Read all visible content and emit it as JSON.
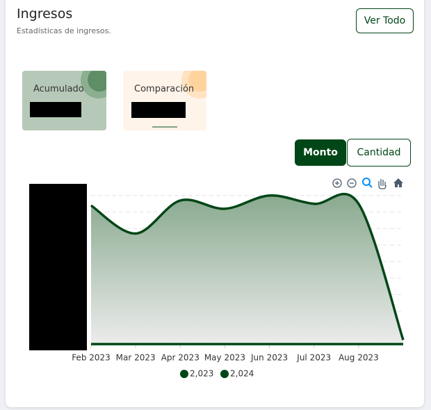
{
  "header": {
    "title": "Ingresos",
    "subtitle": "Estadísticas de ingresos.",
    "button": "Ver Todo"
  },
  "cards": [
    {
      "label": "Acumulado"
    },
    {
      "label": "Comparación"
    }
  ],
  "toggle": [
    "Monto",
    "Cantidad"
  ],
  "chart_data": {
    "type": "area",
    "categories": [
      "Feb 2023",
      "Mar 2023",
      "Apr 2023",
      "May 2023",
      "Jun 2023",
      "Jul 2023",
      "Aug 2023",
      null
    ],
    "series": [
      {
        "name": "2,023",
        "color": "#004616",
        "values": [
          8.4,
          6.7,
          8.7,
          8.2,
          9.0,
          8.5,
          8.5,
          0.25
        ]
      },
      {
        "name": "2,024",
        "color": "#004616",
        "values": [
          0,
          0,
          0,
          0,
          0,
          0,
          0,
          0
        ]
      }
    ],
    "ylim": [
      0,
      9.5
    ],
    "yticks": [
      0,
      1,
      2,
      3,
      4,
      5,
      6,
      7,
      8,
      9
    ],
    "grid": true
  }
}
